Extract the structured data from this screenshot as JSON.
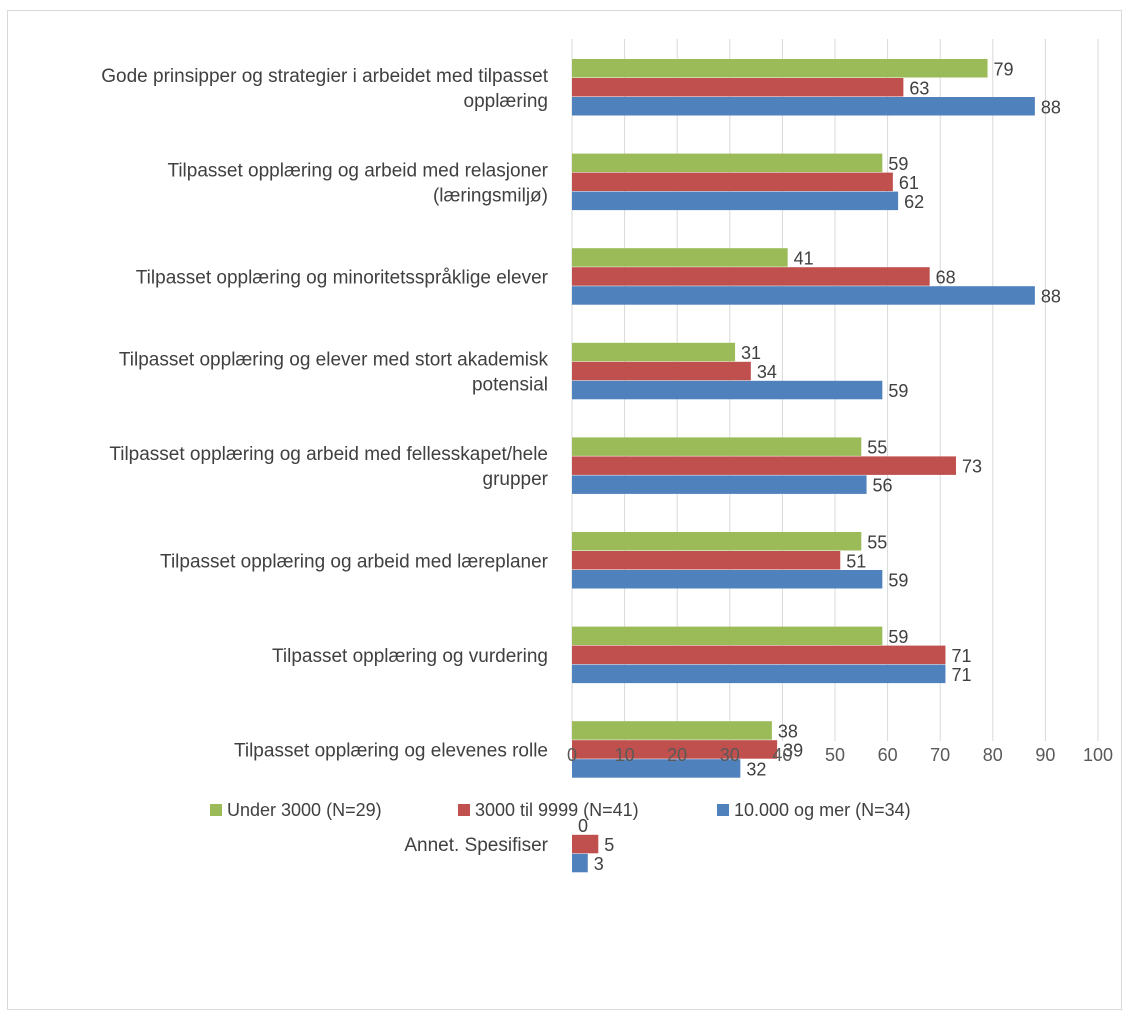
{
  "chart_data": {
    "type": "bar",
    "orientation": "horizontal",
    "categories": [
      [
        "Gode prinsipper og strategier i arbeidet med tilpasset",
        "opplæring"
      ],
      [
        "Tilpasset opplæring og arbeid med relasjoner",
        "(læringsmiljø)"
      ],
      [
        "Tilpasset opplæring og minoritetsspråklige elever"
      ],
      [
        "Tilpasset opplæring og elever med stort akademisk",
        "potensial"
      ],
      [
        "Tilpasset opplæring og arbeid med fellesskapet/hele",
        "grupper"
      ],
      [
        "Tilpasset opplæring og arbeid med læreplaner"
      ],
      [
        "Tilpasset opplæring og vurdering"
      ],
      [
        "Tilpasset opplæring og elevenes rolle"
      ],
      [
        "Annet. Spesifiser"
      ]
    ],
    "series": [
      {
        "name": "Under 3000 (N=29)",
        "color": "#9BBB59",
        "values": [
          79,
          59,
          41,
          31,
          55,
          55,
          59,
          38,
          0
        ]
      },
      {
        "name": "3000 til 9999 (N=41)",
        "color": "#C0504D",
        "values": [
          63,
          61,
          68,
          34,
          73,
          51,
          71,
          39,
          5
        ]
      },
      {
        "name": "10.000 og mer (N=34)",
        "color": "#4F81BD",
        "values": [
          88,
          62,
          88,
          59,
          56,
          59,
          71,
          32,
          3
        ]
      }
    ],
    "xlim": [
      0,
      100
    ],
    "xticks": [
      0,
      10,
      20,
      30,
      40,
      50,
      60,
      70,
      80,
      90,
      100
    ],
    "grid": "vertical",
    "legend_position": "bottom",
    "data_labels": true
  }
}
